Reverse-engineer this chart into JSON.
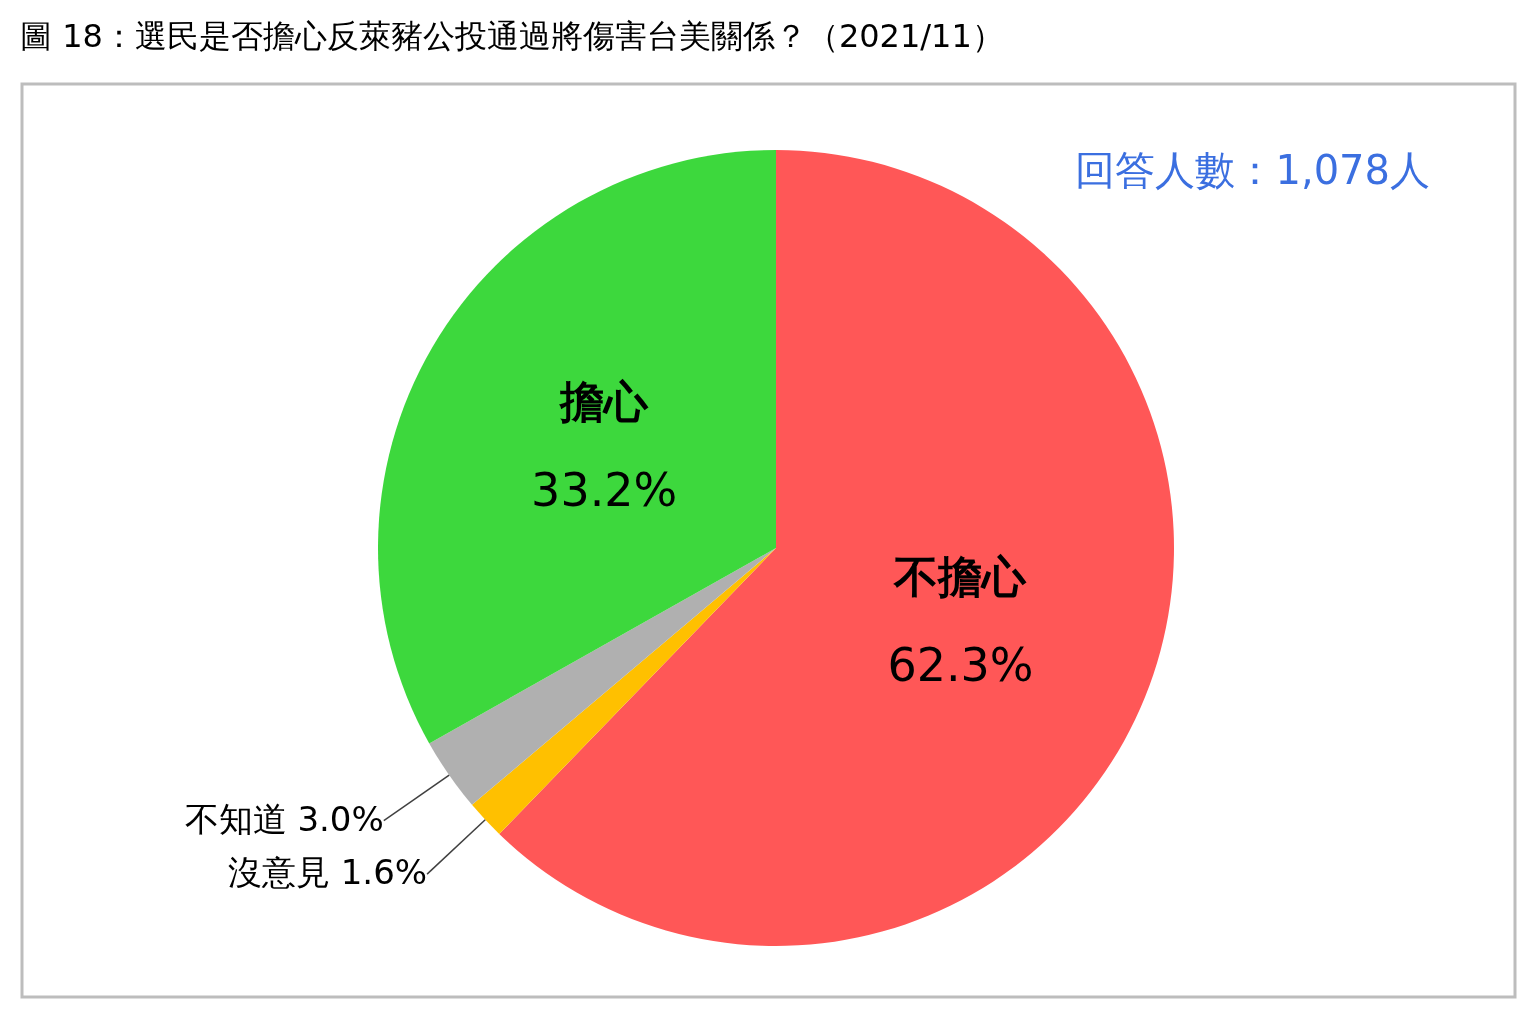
{
  "chart_data": {
    "type": "pie",
    "title": "圖 18：選民是否擔心反萊豬公投通過將傷害台美關係？（2021/11）",
    "categories": [
      "不擔心",
      "沒意見",
      "不知道",
      "擔心"
    ],
    "values": [
      62.3,
      1.6,
      3.0,
      33.2
    ],
    "colors": [
      "#ff5757",
      "#ffc000",
      "#b0b0b0",
      "#3dd83d"
    ],
    "value_labels": [
      "62.3%",
      "1.6%",
      "3.0%",
      "33.2%"
    ],
    "legend": false,
    "annotations": [
      "回答人數：1,078人"
    ]
  }
}
